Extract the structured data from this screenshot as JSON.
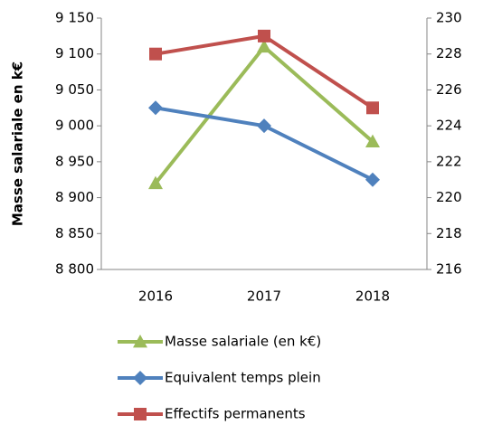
{
  "chart_data": {
    "type": "line",
    "ylabel": "Masse salariale en k€",
    "categories": [
      "2016",
      "2017",
      "2018"
    ],
    "series": [
      {
        "name": "Masse salariale (en k€)",
        "color": "#9bbb59",
        "marker": "triangle",
        "axis": "y",
        "values": [
          8920,
          9110,
          8978
        ]
      },
      {
        "name": "Equivalent temps plein",
        "color": "#4f81bd",
        "marker": "diamond",
        "axis": "y2",
        "values": [
          225,
          224,
          221
        ]
      },
      {
        "name": "Effectifs permanents",
        "color": "#c0504d",
        "marker": "square",
        "axis": "y2",
        "values": [
          228,
          229,
          225
        ]
      }
    ],
    "ylim": [
      8800,
      9150
    ],
    "yticks": [
      {
        "value": 8800,
        "label": "8 800"
      },
      {
        "value": 8850,
        "label": "8 850"
      },
      {
        "value": 8900,
        "label": "8 900"
      },
      {
        "value": 8950,
        "label": "8 950"
      },
      {
        "value": 9000,
        "label": "9 000"
      },
      {
        "value": 9050,
        "label": "9 050"
      },
      {
        "value": 9100,
        "label": "9 100"
      },
      {
        "value": 9150,
        "label": "9 150"
      }
    ],
    "y2lim": [
      216,
      230
    ],
    "y2ticks": [
      216,
      218,
      220,
      222,
      224,
      226,
      228,
      230
    ],
    "legend": "bottom"
  }
}
